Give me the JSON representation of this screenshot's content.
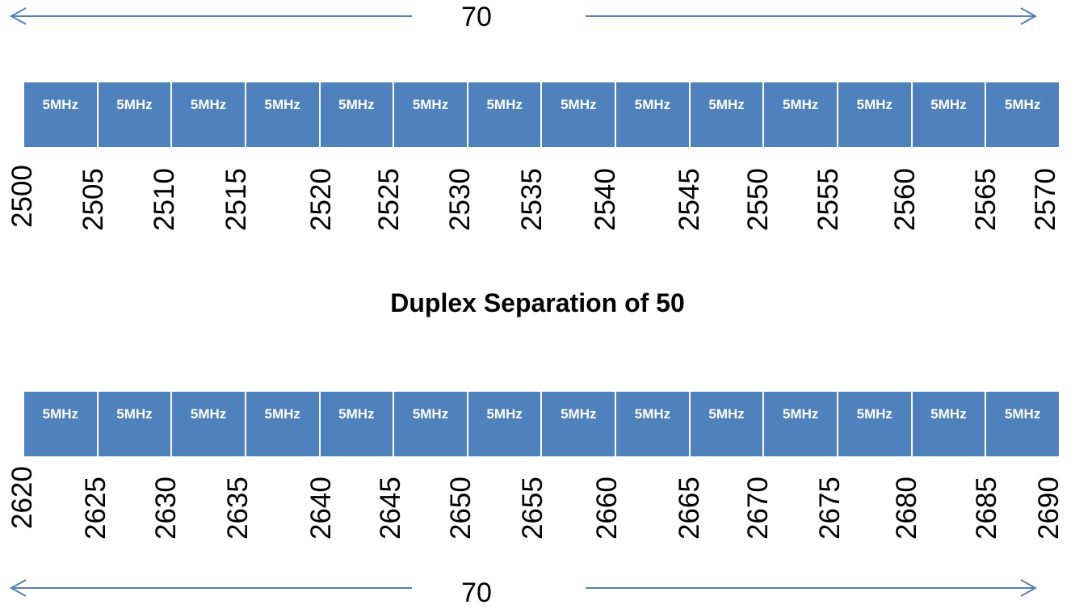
{
  "top_span": {
    "label": "70"
  },
  "bottom_span": {
    "label": "70"
  },
  "title": "Duplex Separation of 50",
  "uplink_band": {
    "blocks": [
      "5MHz",
      "5MHz",
      "5MHz",
      "5MHz",
      "5MHz",
      "5MHz",
      "5MHz",
      "5MHz",
      "5MHz",
      "5MHz",
      "5MHz",
      "5MHz",
      "5MHz",
      "5MHz"
    ],
    "frequencies": [
      "2500",
      "2505",
      "2510",
      "2515",
      "2520",
      "2525",
      "2530",
      "2535",
      "2540",
      "2545",
      "2550",
      "2555",
      "2560",
      "2565",
      "2570"
    ]
  },
  "downlink_band": {
    "blocks": [
      "5MHz",
      "5MHz",
      "5MHz",
      "5MHz",
      "5MHz",
      "5MHz",
      "5MHz",
      "5MHz",
      "5MHz",
      "5MHz",
      "5MHz",
      "5MHz",
      "5MHz",
      "5MHz"
    ],
    "frequencies": [
      "2620",
      "2625",
      "2630",
      "2635",
      "2640",
      "2645",
      "2650",
      "2655",
      "2660",
      "2665",
      "2670",
      "2675",
      "2680",
      "2685",
      "2690"
    ]
  },
  "colors": {
    "block": "#4f81bd",
    "arrow": "#4f81bd"
  }
}
